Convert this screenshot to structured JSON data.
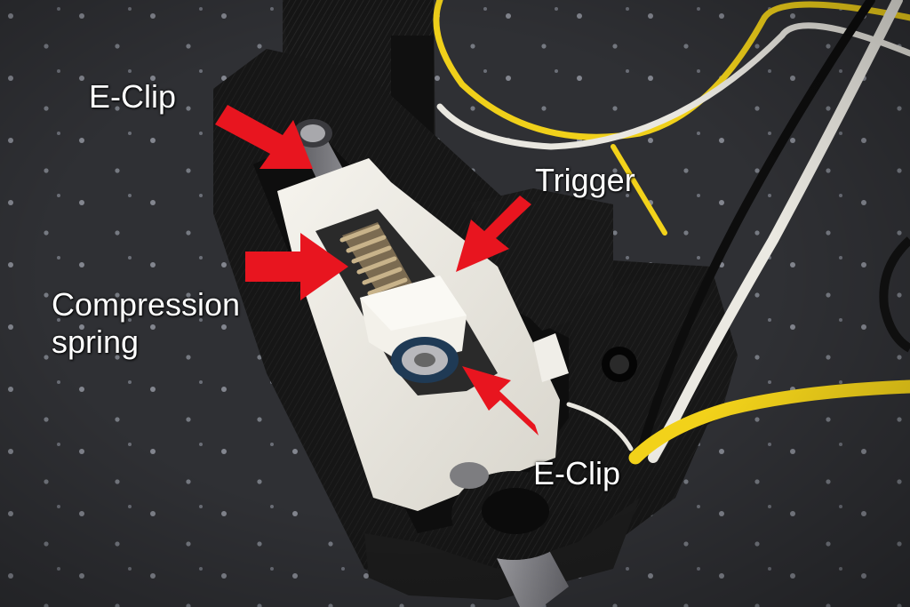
{
  "labels": {
    "eclip_top": "E-Clip",
    "trigger": "Trigger",
    "compression_spring": "Compression\nspring",
    "eclip_bottom": "E-Clip"
  },
  "colors": {
    "arrow": "#e8151f",
    "mat": "#2e2f32",
    "printed_black": "#151515",
    "printed_white": "#eeece6",
    "wire_yellow": "#f2d21a",
    "wire_white": "#e8e6df",
    "wire_black": "#0c0c0c",
    "spring": "#8a7a5e",
    "shaft": "#a9a9ad",
    "label_text": "#ffffff"
  }
}
